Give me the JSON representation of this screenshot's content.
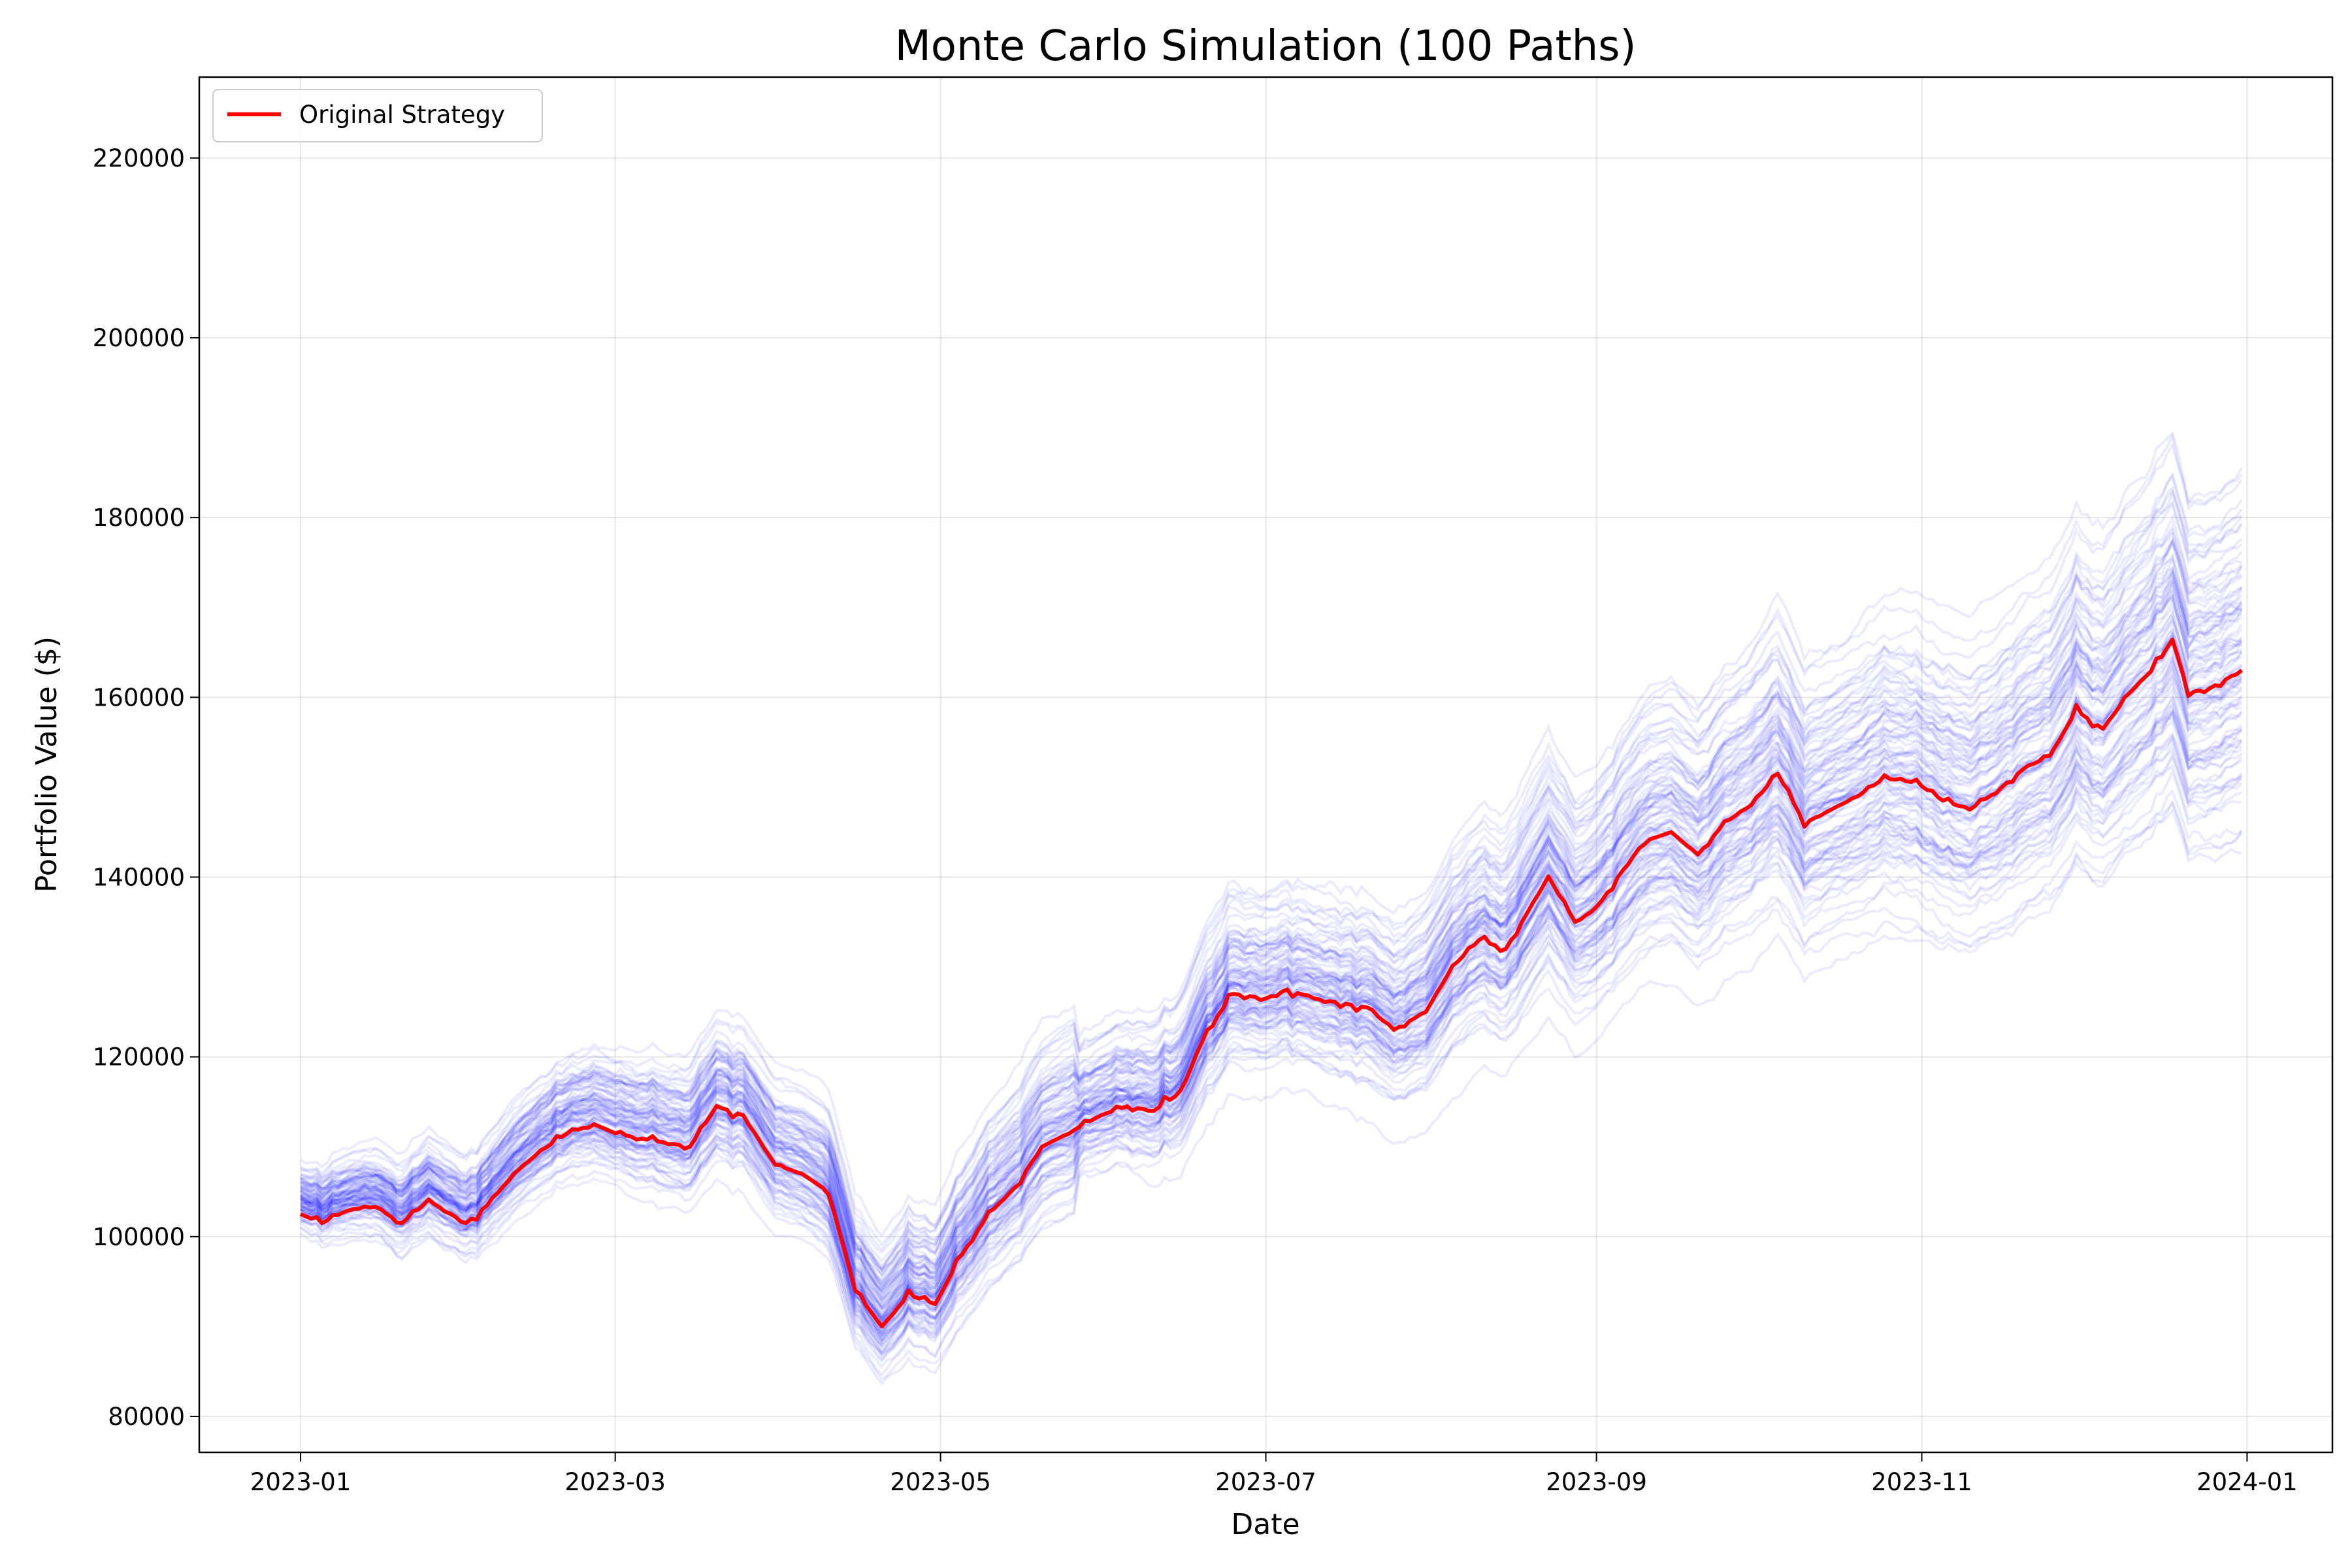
{
  "chart_data": {
    "type": "line",
    "title": "Monte Carlo Simulation (100 Paths)",
    "xlabel": "Date",
    "ylabel": "Portfolio Value ($)",
    "x_start": "2023-01-01",
    "x_end": "2023-12-31",
    "xlim": [
      "2022-12-13",
      "2024-01-17"
    ],
    "ylim": [
      76000,
      229000
    ],
    "x_ticks": [
      "2023-01",
      "2023-03",
      "2023-05",
      "2023-07",
      "2023-09",
      "2023-11",
      "2024-01"
    ],
    "y_ticks": [
      80000,
      100000,
      120000,
      140000,
      160000,
      180000,
      200000,
      220000
    ],
    "grid": true,
    "legend_position": "top-left",
    "legend": [
      "Original Strategy"
    ],
    "colors": {
      "original": "#ff0000",
      "simulations": "#0000ff"
    },
    "original_strategy": {
      "name": "Original Strategy",
      "points": [
        [
          "2023-01-01",
          102500
        ],
        [
          "2023-01-05",
          101500
        ],
        [
          "2023-01-10",
          103000
        ],
        [
          "2023-01-15",
          103300
        ],
        [
          "2023-01-20",
          101500
        ],
        [
          "2023-01-25",
          104000
        ],
        [
          "2023-02-01",
          101500
        ],
        [
          "2023-02-05",
          103500
        ],
        [
          "2023-02-10",
          107000
        ],
        [
          "2023-02-15",
          109500
        ],
        [
          "2023-02-20",
          111500
        ],
        [
          "2023-02-25",
          112500
        ],
        [
          "2023-03-01",
          111500
        ],
        [
          "2023-03-05",
          111000
        ],
        [
          "2023-03-10",
          110500
        ],
        [
          "2023-03-15",
          110000
        ],
        [
          "2023-03-20",
          114500
        ],
        [
          "2023-03-25",
          113500
        ],
        [
          "2023-03-31",
          108000
        ],
        [
          "2023-04-05",
          107000
        ],
        [
          "2023-04-10",
          105000
        ],
        [
          "2023-04-15",
          94000
        ],
        [
          "2023-04-20",
          90000
        ],
        [
          "2023-04-25",
          93500
        ],
        [
          "2023-04-30",
          92500
        ],
        [
          "2023-05-05",
          98000
        ],
        [
          "2023-05-10",
          102500
        ],
        [
          "2023-05-15",
          105500
        ],
        [
          "2023-05-20",
          110000
        ],
        [
          "2023-05-25",
          111500
        ],
        [
          "2023-05-31",
          113500
        ],
        [
          "2023-06-05",
          114500
        ],
        [
          "2023-06-10",
          114000
        ],
        [
          "2023-06-15",
          116000
        ],
        [
          "2023-06-20",
          123000
        ],
        [
          "2023-06-25",
          127000
        ],
        [
          "2023-07-01",
          126500
        ],
        [
          "2023-07-05",
          127500
        ],
        [
          "2023-07-10",
          126500
        ],
        [
          "2023-07-15",
          126000
        ],
        [
          "2023-07-20",
          125500
        ],
        [
          "2023-07-25",
          123000
        ],
        [
          "2023-07-31",
          125000
        ],
        [
          "2023-08-05",
          130000
        ],
        [
          "2023-08-10",
          133000
        ],
        [
          "2023-08-15",
          132000
        ],
        [
          "2023-08-20",
          137000
        ],
        [
          "2023-08-23",
          140000
        ],
        [
          "2023-08-28",
          135000
        ],
        [
          "2023-09-01",
          136500
        ],
        [
          "2023-09-05",
          140000
        ],
        [
          "2023-09-10",
          144000
        ],
        [
          "2023-09-15",
          145000
        ],
        [
          "2023-09-20",
          142500
        ],
        [
          "2023-09-25",
          146000
        ],
        [
          "2023-09-30",
          148000
        ],
        [
          "2023-10-05",
          151500
        ],
        [
          "2023-10-10",
          146000
        ],
        [
          "2023-10-15",
          147500
        ],
        [
          "2023-10-20",
          149000
        ],
        [
          "2023-10-25",
          151000
        ],
        [
          "2023-10-31",
          150500
        ],
        [
          "2023-11-05",
          148500
        ],
        [
          "2023-11-10",
          147500
        ],
        [
          "2023-11-15",
          149500
        ],
        [
          "2023-11-20",
          152000
        ],
        [
          "2023-11-25",
          153500
        ],
        [
          "2023-11-30",
          158500
        ],
        [
          "2023-12-05",
          156500
        ],
        [
          "2023-12-10",
          160500
        ],
        [
          "2023-12-15",
          163500
        ],
        [
          "2023-12-18",
          166500
        ],
        [
          "2023-12-21",
          160500
        ],
        [
          "2023-12-25",
          161000
        ],
        [
          "2023-12-31",
          163000
        ]
      ]
    }
  }
}
